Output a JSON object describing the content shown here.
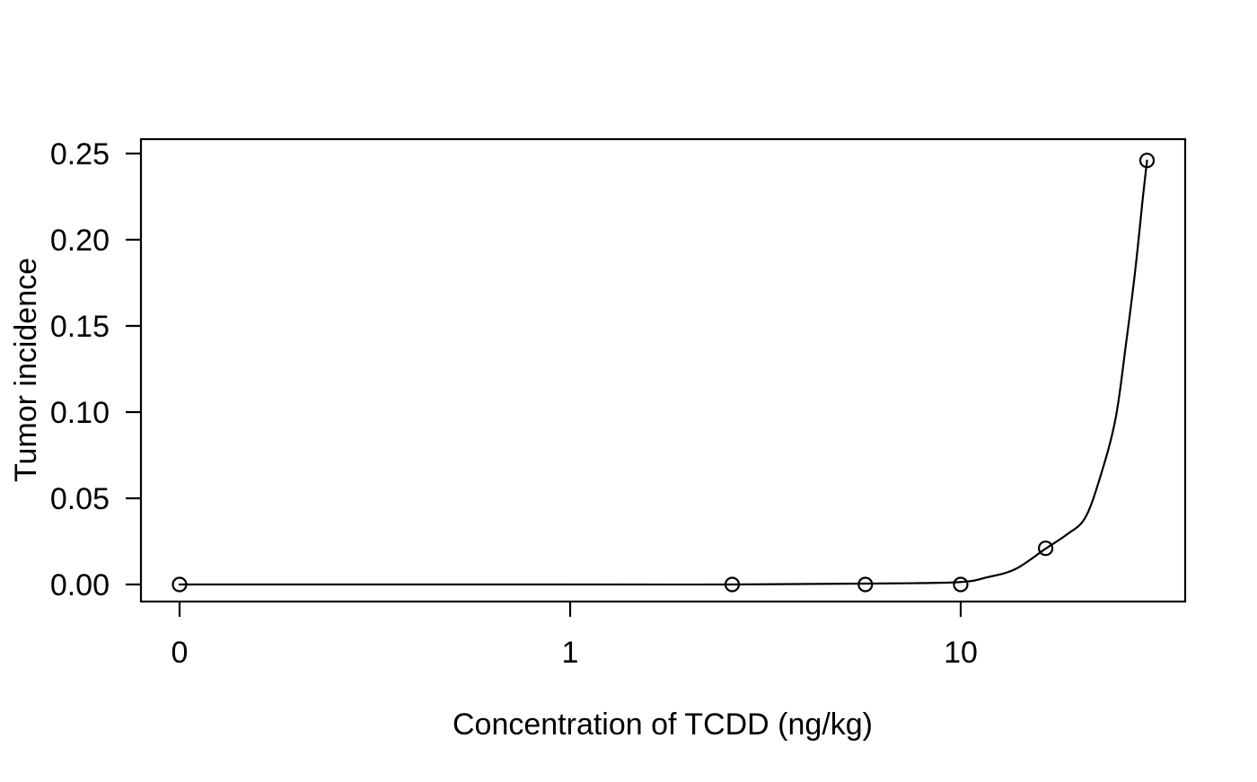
{
  "figure": {
    "background_color": "#ffffff",
    "foreground_color": "#000000"
  },
  "chart_data": {
    "type": "scatter",
    "title": "",
    "xlabel": "Concentration of TCDD (ng/kg)",
    "ylabel": "Tumor incidence",
    "x_scale": "log10, zero dose plotted at left of axis",
    "x_tick_labels": [
      "0",
      "1",
      "10"
    ],
    "x_tick_values": [
      0,
      1,
      10
    ],
    "y_tick_labels": [
      "0.00",
      "0.05",
      "0.10",
      "0.15",
      "0.20",
      "0.25"
    ],
    "y_tick_values": [
      0.0,
      0.05,
      0.1,
      0.15,
      0.2,
      0.25
    ],
    "ylim": [
      0,
      0.25
    ],
    "grid": false,
    "legend": null,
    "points": {
      "marker": "open-circle",
      "dose_ng_per_kg": [
        0,
        2.6,
        5.7,
        10,
        16.5,
        30
      ],
      "tumor_incidence": [
        0,
        0,
        0,
        0,
        0.021,
        0.246
      ]
    },
    "fitted_curve_samples": [
      [
        0,
        0
      ],
      [
        1,
        0
      ],
      [
        2.6,
        0
      ],
      [
        5.7,
        0.0005
      ],
      [
        9.8,
        0.0013
      ],
      [
        11.7,
        0.0042
      ],
      [
        13.8,
        0.0089
      ],
      [
        16.5,
        0.0208
      ],
      [
        18.7,
        0.029
      ],
      [
        20.8,
        0.0385
      ],
      [
        22.7,
        0.0615
      ],
      [
        24.9,
        0.0958
      ],
      [
        26.5,
        0.1396
      ],
      [
        28.0,
        0.1828
      ],
      [
        29.3,
        0.2255
      ],
      [
        30.0,
        0.246
      ]
    ]
  }
}
